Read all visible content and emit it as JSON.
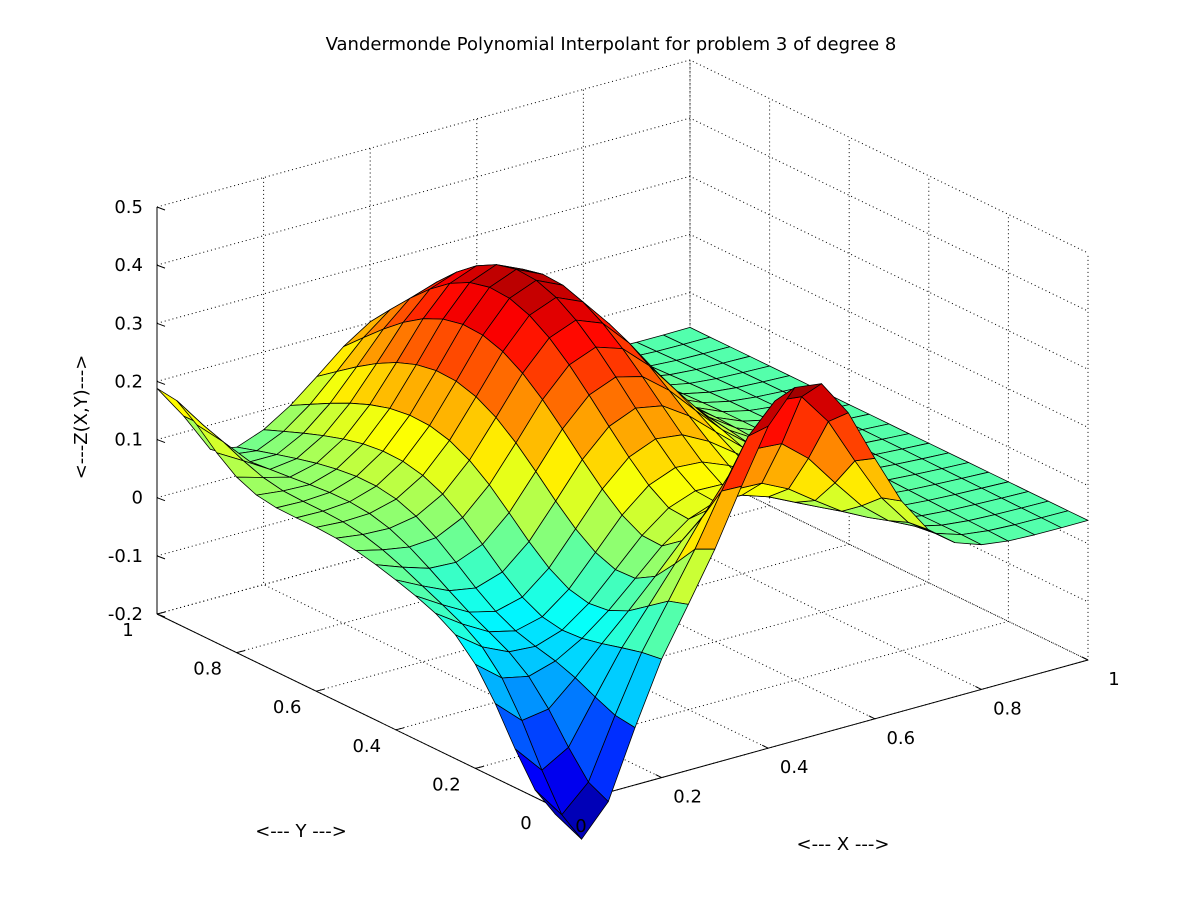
{
  "chart_data": {
    "type": "surface",
    "title": "Vandermonde Polynomial Interpolant for problem 3 of degree 8",
    "xlabel": "<--- X --->",
    "ylabel": "<--- Y --->",
    "zlabel": "<---Z(X,Y)--->",
    "xlim": [
      0,
      1
    ],
    "ylim": [
      0,
      1
    ],
    "zlim": [
      -0.2,
      0.5
    ],
    "x_ticks": [
      "0",
      "0.2",
      "0.4",
      "0.6",
      "0.8",
      "1"
    ],
    "y_ticks": [
      "0",
      "0.2",
      "0.4",
      "0.6",
      "0.8",
      "1"
    ],
    "z_ticks": [
      "-0.2",
      "-0.1",
      "0",
      "0.1",
      "0.2",
      "0.3",
      "0.4",
      "0.5"
    ],
    "grid": true,
    "colormap": "jet",
    "grid_points_per_axis": 21,
    "approximate_surface": {
      "corner_values": {
        "x0_y0": -0.19,
        "x0_y1": 0.19,
        "x1_y0": 0.07,
        "x1_y1": 0.05
      },
      "ridge_along_y_at_x0_5": {
        "peak_z": 0.36,
        "at_y": 0.7
      },
      "front_ridge_at_y0": {
        "peak_z": 0.33,
        "at_x": 0.45
      },
      "trough_at_y0": {
        "min_z": -0.19,
        "at_x": 0.05
      }
    }
  },
  "colors": {
    "background": "#ffffff",
    "axes": "#000000",
    "grid": "#000000",
    "mesh_edge": "#000000"
  }
}
